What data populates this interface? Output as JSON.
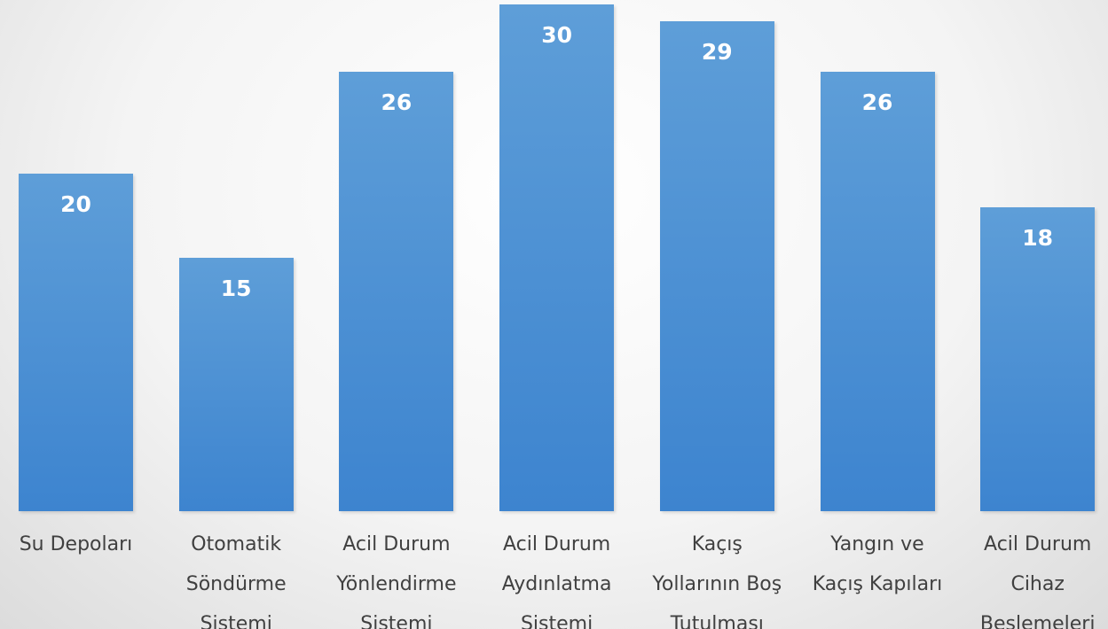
{
  "chart_data": {
    "type": "bar",
    "categories": [
      "Su Depoları",
      "Otomatik\nSöndürme\nSistemi",
      "Acil Durum\nYönlendirme\nSistemi",
      "Acil Durum\nAydınlatma\nSistemi",
      "Kaçış\nYollarının Boş\nTutulması",
      "Yangın ve\nKaçış Kapıları",
      "Acil Durum\nCihaz\nBeslemeleri"
    ],
    "values": [
      20,
      15,
      26,
      30,
      29,
      26,
      18
    ],
    "color": "#5b9bd5"
  }
}
